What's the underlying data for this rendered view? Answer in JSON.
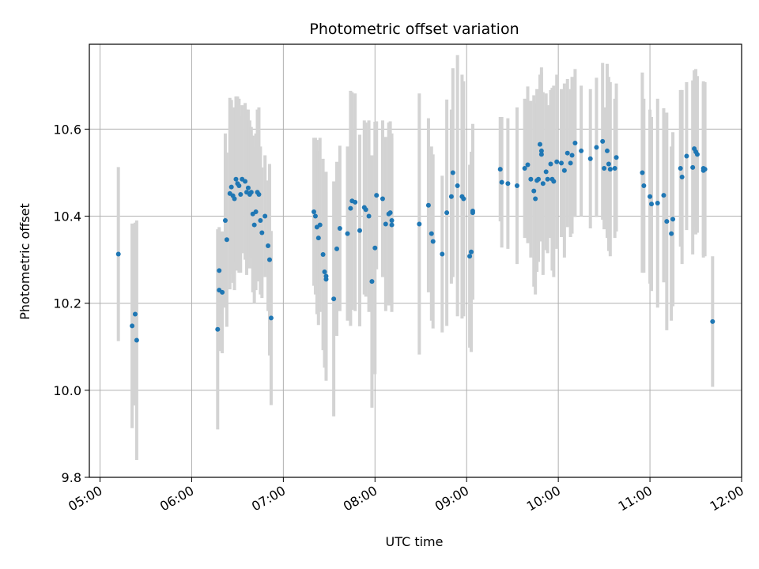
{
  "chart_data": {
    "type": "scatter",
    "title": "Photometric offset variation",
    "xlabel": "UTC time",
    "ylabel": "Photometric offset",
    "x_ticks": [
      "05:00",
      "06:00",
      "07:00",
      "08:00",
      "09:00",
      "10:00",
      "11:00",
      "12:00"
    ],
    "y_ticks": [
      "9.8",
      "10.0",
      "10.2",
      "10.4",
      "10.6"
    ],
    "xlim": [
      "04:53",
      "12:00"
    ],
    "ylim": [
      9.8,
      10.795
    ],
    "grid": true,
    "colors": {
      "point": "#1f77b4",
      "errorbar": "#d3d3d3",
      "grid": "#b0b0b0"
    },
    "points": [
      [
        "05:12",
        10.313,
        0.2
      ],
      [
        "05:21",
        10.148,
        0.235
      ],
      [
        "05:23",
        10.175,
        0.21
      ],
      [
        "05:24",
        10.115,
        0.275
      ],
      [
        "06:17",
        10.14,
        0.23
      ],
      [
        "06:18",
        10.23,
        0.14
      ],
      [
        "06:18",
        10.275,
        0.1
      ],
      [
        "06:20",
        10.225,
        0.14
      ],
      [
        "06:22",
        10.39,
        0.2
      ],
      [
        "06:23",
        10.346,
        0.2
      ],
      [
        "06:25",
        10.452,
        0.22
      ],
      [
        "06:26",
        10.467,
        0.2
      ],
      [
        "06:27",
        10.447,
        0.2
      ],
      [
        "06:28",
        10.44,
        0.21
      ],
      [
        "06:29",
        10.485,
        0.19
      ],
      [
        "06:30",
        10.475,
        0.2
      ],
      [
        "06:31",
        10.47,
        0.2
      ],
      [
        "06:32",
        10.45,
        0.18
      ],
      [
        "06:33",
        10.485,
        0.17
      ],
      [
        "06:35",
        10.48,
        0.18
      ],
      [
        "06:36",
        10.455,
        0.19
      ],
      [
        "06:37",
        10.465,
        0.18
      ],
      [
        "06:38",
        10.45,
        0.17
      ],
      [
        "06:39",
        10.455,
        0.15
      ],
      [
        "06:40",
        10.405,
        0.18
      ],
      [
        "06:41",
        10.38,
        0.18
      ],
      [
        "06:42",
        10.41,
        0.18
      ],
      [
        "06:43",
        10.455,
        0.19
      ],
      [
        "06:44",
        10.45,
        0.2
      ],
      [
        "06:45",
        10.39,
        0.17
      ],
      [
        "06:46",
        10.362,
        0.15
      ],
      [
        "06:48",
        10.4,
        0.14
      ],
      [
        "06:50",
        10.332,
        0.15
      ],
      [
        "06:51",
        10.3,
        0.22
      ],
      [
        "06:52",
        10.166,
        0.2
      ],
      [
        "07:20",
        10.41,
        0.17
      ],
      [
        "07:21",
        10.4,
        0.18
      ],
      [
        "07:22",
        10.375,
        0.2
      ],
      [
        "07:23",
        10.35,
        0.2
      ],
      [
        "07:24",
        10.38,
        0.2
      ],
      [
        "07:26",
        10.312,
        0.22
      ],
      [
        "07:27",
        10.272,
        0.22
      ],
      [
        "07:28",
        10.262,
        0.24
      ],
      [
        "07:28",
        10.255,
        0.2
      ],
      [
        "07:33",
        10.21,
        0.27
      ],
      [
        "07:35",
        10.325,
        0.2
      ],
      [
        "07:37",
        10.372,
        0.19
      ],
      [
        "07:42",
        10.36,
        0.2
      ],
      [
        "07:44",
        10.418,
        0.27
      ],
      [
        "07:45",
        10.435,
        0.25
      ],
      [
        "07:47",
        10.432,
        0.25
      ],
      [
        "07:50",
        10.367,
        0.22
      ],
      [
        "07:53",
        10.42,
        0.2
      ],
      [
        "07:54",
        10.415,
        0.2
      ],
      [
        "07:56",
        10.4,
        0.22
      ],
      [
        "07:58",
        10.25,
        0.29
      ],
      [
        "08:00",
        10.327,
        0.29
      ],
      [
        "08:01",
        10.448,
        0.17
      ],
      [
        "08:05",
        10.44,
        0.18
      ],
      [
        "08:07",
        10.382,
        0.2
      ],
      [
        "08:09",
        10.405,
        0.21
      ],
      [
        "08:10",
        10.408,
        0.21
      ],
      [
        "08:11",
        10.39,
        0.2
      ],
      [
        "08:11",
        10.38,
        0.2
      ],
      [
        "08:29",
        10.382,
        0.3
      ],
      [
        "08:35",
        10.425,
        0.2
      ],
      [
        "08:37",
        10.36,
        0.2
      ],
      [
        "08:38",
        10.342,
        0.2
      ],
      [
        "08:44",
        10.313,
        0.18
      ],
      [
        "08:47",
        10.408,
        0.26
      ],
      [
        "08:50",
        10.445,
        0.2
      ],
      [
        "08:51",
        10.5,
        0.24
      ],
      [
        "08:54",
        10.47,
        0.3
      ],
      [
        "08:57",
        10.445,
        0.28
      ],
      [
        "08:58",
        10.44,
        0.27
      ],
      [
        "09:02",
        10.308,
        0.21
      ],
      [
        "09:03",
        10.318,
        0.23
      ],
      [
        "09:04",
        10.412,
        0.2
      ],
      [
        "09:04",
        10.408,
        0.2
      ],
      [
        "09:22",
        10.508,
        0.12
      ],
      [
        "09:23",
        10.478,
        0.15
      ],
      [
        "09:27",
        10.475,
        0.15
      ],
      [
        "09:33",
        10.47,
        0.18
      ],
      [
        "09:38",
        10.51,
        0.16
      ],
      [
        "09:40",
        10.518,
        0.18
      ],
      [
        "09:42",
        10.485,
        0.18
      ],
      [
        "09:44",
        10.458,
        0.22
      ],
      [
        "09:45",
        10.44,
        0.22
      ],
      [
        "09:46",
        10.482,
        0.21
      ],
      [
        "09:47",
        10.485,
        0.19
      ],
      [
        "09:48",
        10.565,
        0.16
      ],
      [
        "09:49",
        10.542,
        0.2
      ],
      [
        "09:49",
        10.55,
        0.18
      ],
      [
        "09:50",
        10.475,
        0.21
      ],
      [
        "09:52",
        10.502,
        0.18
      ],
      [
        "09:53",
        10.485,
        0.17
      ],
      [
        "09:55",
        10.52,
        0.17
      ],
      [
        "09:56",
        10.485,
        0.21
      ],
      [
        "09:57",
        10.48,
        0.22
      ],
      [
        "09:59",
        10.525,
        0.2
      ],
      [
        "10:02",
        10.522,
        0.17
      ],
      [
        "10:04",
        10.505,
        0.2
      ],
      [
        "10:06",
        10.545,
        0.17
      ],
      [
        "10:08",
        10.522,
        0.17
      ],
      [
        "10:09",
        10.54,
        0.18
      ],
      [
        "10:11",
        10.568,
        0.17
      ],
      [
        "10:15",
        10.55,
        0.15
      ],
      [
        "10:21",
        10.532,
        0.16
      ],
      [
        "10:25",
        10.558,
        0.16
      ],
      [
        "10:29",
        10.572,
        0.18
      ],
      [
        "10:30",
        10.51,
        0.14
      ],
      [
        "10:32",
        10.55,
        0.2
      ],
      [
        "10:33",
        10.52,
        0.2
      ],
      [
        "10:34",
        10.508,
        0.2
      ],
      [
        "10:37",
        10.51,
        0.16
      ],
      [
        "10:38",
        10.535,
        0.17
      ],
      [
        "10:55",
        10.5,
        0.23
      ],
      [
        "10:56",
        10.47,
        0.2
      ],
      [
        "11:00",
        10.445,
        0.2
      ],
      [
        "11:01",
        10.428,
        0.2
      ],
      [
        "11:05",
        10.43,
        0.24
      ],
      [
        "11:09",
        10.448,
        0.2
      ],
      [
        "11:11",
        10.388,
        0.25
      ],
      [
        "11:14",
        10.36,
        0.2
      ],
      [
        "11:15",
        10.393,
        0.2
      ],
      [
        "11:20",
        10.51,
        0.18
      ],
      [
        "11:21",
        10.49,
        0.2
      ],
      [
        "11:24",
        10.538,
        0.17
      ],
      [
        "11:28",
        10.512,
        0.2
      ],
      [
        "11:29",
        10.555,
        0.18
      ],
      [
        "11:30",
        10.548,
        0.19
      ],
      [
        "11:31",
        10.542,
        0.18
      ],
      [
        "11:35",
        10.51,
        0.2
      ],
      [
        "11:35",
        10.505,
        0.2
      ],
      [
        "11:36",
        10.508,
        0.2
      ],
      [
        "11:41",
        10.158,
        0.15
      ]
    ]
  }
}
